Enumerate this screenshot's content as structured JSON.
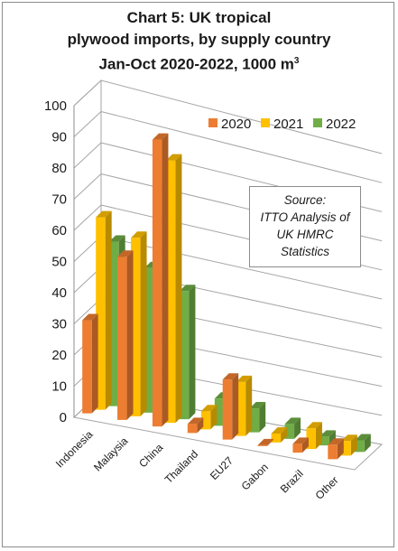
{
  "chart_data": {
    "type": "bar",
    "title_line1": "Chart 5: UK tropical",
    "title_line2": "plywood imports, by supply country",
    "title_line3": "Jan-Oct 2020-2022, 1000 m",
    "title_unit_sup": "3",
    "categories": [
      "Indonesia",
      "Malaysia",
      "China",
      "Thailand",
      "EU27",
      "Gabon",
      "Brazil",
      "Other"
    ],
    "series": [
      {
        "name": "2020",
        "color": "#ed7d31",
        "values": [
          30,
          53,
          94,
          3,
          20,
          0.3,
          3,
          5
        ]
      },
      {
        "name": "2021",
        "color": "#ffc000",
        "values": [
          62,
          58,
          86,
          6,
          18,
          3,
          7,
          5
        ]
      },
      {
        "name": "2022",
        "color": "#70ad47",
        "values": [
          53,
          47,
          42,
          9,
          8,
          5,
          3,
          4
        ]
      }
    ],
    "ylim": [
      0,
      100
    ],
    "yticks": [
      "0",
      "10",
      "20",
      "30",
      "40",
      "50",
      "60",
      "70",
      "80",
      "90",
      "100"
    ],
    "grid": true,
    "legend_position": "top-right",
    "annotation": {
      "line1": "Source:",
      "line2": "ITTO Analysis of",
      "line3": "UK HMRC",
      "line4": "Statistics"
    }
  }
}
